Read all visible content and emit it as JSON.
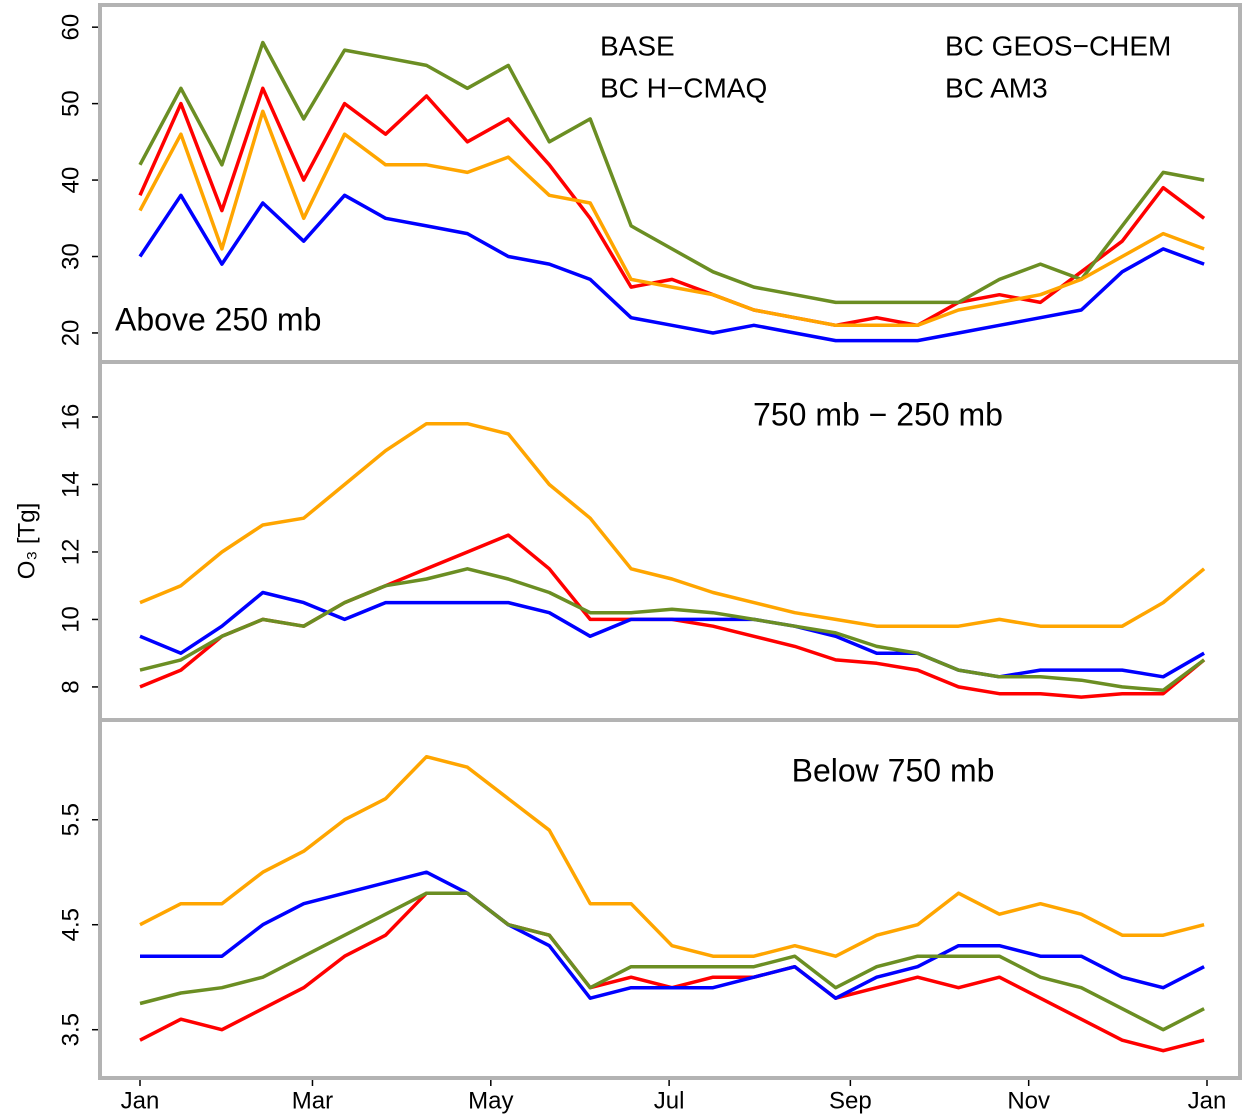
{
  "chart_data": [
    {
      "type": "line",
      "annotation": "Above 250 mb",
      "legend": true,
      "x": [
        1,
        15,
        29,
        43,
        57,
        71,
        85,
        99,
        113,
        127,
        141,
        155,
        169,
        183,
        197,
        211,
        225,
        239,
        253,
        267,
        281,
        295,
        309,
        323,
        337,
        351,
        365
      ],
      "xlim": [
        1,
        366
      ],
      "ylim": [
        16.2,
        62.9
      ],
      "yticks": [
        20,
        30,
        40,
        50,
        60
      ],
      "series": [
        {
          "name": "BASE",
          "color": "#ff0000",
          "values": [
            38,
            50,
            36,
            52,
            40,
            50,
            46,
            51,
            45,
            48,
            42,
            35,
            26,
            27,
            25,
            23,
            22,
            21,
            22,
            21,
            24,
            25,
            24,
            28,
            32,
            39,
            35
          ]
        },
        {
          "name": "BC H−CMAQ",
          "color": "#0000ff",
          "values": [
            30,
            38,
            29,
            37,
            32,
            38,
            35,
            34,
            33,
            30,
            29,
            27,
            22,
            21,
            20,
            21,
            20,
            19,
            19,
            19,
            20,
            21,
            22,
            23,
            28,
            31,
            29
          ]
        },
        {
          "name": "BC GEOS−CHEM",
          "color": "#6b8e23",
          "values": [
            42,
            52,
            42,
            58,
            48,
            57,
            56,
            55,
            52,
            55,
            45,
            48,
            34,
            31,
            28,
            26,
            25,
            24,
            24,
            24,
            24,
            27,
            29,
            27,
            34,
            41,
            40
          ]
        },
        {
          "name": "BC AM3",
          "color": "#ffa500",
          "values": [
            36,
            46,
            31,
            49,
            35,
            46,
            42,
            42,
            41,
            43,
            38,
            37,
            27,
            26,
            25,
            23,
            22,
            21,
            21,
            21,
            23,
            24,
            25,
            27,
            30,
            33,
            31
          ]
        }
      ]
    },
    {
      "type": "line",
      "annotation": "750 mb − 250 mb",
      "ylabel": "O₃ [Tg]",
      "x": [
        1,
        15,
        29,
        43,
        57,
        71,
        85,
        99,
        113,
        127,
        141,
        155,
        169,
        183,
        197,
        211,
        225,
        239,
        253,
        267,
        281,
        295,
        309,
        323,
        337,
        351,
        365
      ],
      "xlim": [
        1,
        366
      ],
      "ylim": [
        7.02,
        17.63
      ],
      "yticks": [
        8,
        10,
        12,
        14,
        16
      ],
      "series": [
        {
          "color": "#ff0000",
          "values": [
            8.0,
            8.5,
            9.5,
            10.0,
            9.8,
            10.5,
            11.0,
            11.5,
            12.0,
            12.5,
            11.5,
            10.0,
            10.0,
            10.0,
            9.8,
            9.5,
            9.2,
            8.8,
            8.7,
            8.5,
            8.0,
            7.8,
            7.8,
            7.7,
            7.8,
            7.8,
            8.8
          ]
        },
        {
          "color": "#0000ff",
          "values": [
            9.5,
            9.0,
            9.8,
            10.8,
            10.5,
            10.0,
            10.5,
            10.5,
            10.5,
            10.5,
            10.2,
            9.5,
            10.0,
            10.0,
            10.0,
            10.0,
            9.8,
            9.5,
            9.0,
            9.0,
            8.5,
            8.3,
            8.5,
            8.5,
            8.5,
            8.3,
            9.0
          ]
        },
        {
          "color": "#6b8e23",
          "values": [
            8.5,
            8.8,
            9.5,
            10.0,
            9.8,
            10.5,
            11.0,
            11.2,
            11.5,
            11.2,
            10.8,
            10.2,
            10.2,
            10.3,
            10.2,
            10.0,
            9.8,
            9.6,
            9.2,
            9.0,
            8.5,
            8.3,
            8.3,
            8.2,
            8.0,
            7.9,
            8.8
          ]
        },
        {
          "color": "#ffa500",
          "values": [
            10.5,
            11.0,
            12.0,
            12.8,
            13.0,
            14.0,
            15.0,
            15.8,
            15.8,
            15.5,
            14.0,
            13.0,
            11.5,
            11.2,
            10.8,
            10.5,
            10.2,
            10.0,
            9.8,
            9.8,
            9.8,
            10.0,
            9.8,
            9.8,
            9.8,
            10.5,
            11.5
          ]
        }
      ]
    },
    {
      "type": "line",
      "annotation": "Below 750 mb",
      "x": [
        1,
        15,
        29,
        43,
        57,
        71,
        85,
        99,
        113,
        127,
        141,
        155,
        169,
        183,
        197,
        211,
        225,
        239,
        253,
        267,
        281,
        295,
        309,
        323,
        337,
        351,
        365
      ],
      "xlim": [
        1,
        366
      ],
      "ylim": [
        3.04,
        6.45
      ],
      "yticks": [
        3.5,
        4.5,
        5.5
      ],
      "xticks": [
        {
          "value": 1,
          "label": "Jan"
        },
        {
          "value": 60,
          "label": "Mar"
        },
        {
          "value": 121,
          "label": "May"
        },
        {
          "value": 182,
          "label": "Jul"
        },
        {
          "value": 244,
          "label": "Sep"
        },
        {
          "value": 305,
          "label": "Nov"
        },
        {
          "value": 366,
          "label": "Jan"
        }
      ],
      "series": [
        {
          "color": "#ff0000",
          "values": [
            3.4,
            3.6,
            3.5,
            3.7,
            3.9,
            4.2,
            4.4,
            4.8,
            4.8,
            4.5,
            4.4,
            3.9,
            4.0,
            3.9,
            4.0,
            4.0,
            4.1,
            3.8,
            3.9,
            4.0,
            3.9,
            4.0,
            3.8,
            3.6,
            3.4,
            3.3,
            3.4
          ]
        },
        {
          "color": "#0000ff",
          "values": [
            4.2,
            4.2,
            4.2,
            4.5,
            4.7,
            4.8,
            4.9,
            5.0,
            4.8,
            4.5,
            4.3,
            3.8,
            3.9,
            3.9,
            3.9,
            4.0,
            4.1,
            3.8,
            4.0,
            4.1,
            4.3,
            4.3,
            4.2,
            4.2,
            4.0,
            3.9,
            4.1
          ]
        },
        {
          "color": "#6b8e23",
          "values": [
            3.75,
            3.85,
            3.9,
            4.0,
            4.2,
            4.4,
            4.6,
            4.8,
            4.8,
            4.5,
            4.4,
            3.9,
            4.1,
            4.1,
            4.1,
            4.1,
            4.2,
            3.9,
            4.1,
            4.2,
            4.2,
            4.2,
            4.0,
            3.9,
            3.7,
            3.5,
            3.7
          ]
        },
        {
          "color": "#ffa500",
          "values": [
            4.5,
            4.7,
            4.7,
            5.0,
            5.2,
            5.5,
            5.7,
            6.1,
            6.0,
            5.7,
            5.4,
            4.7,
            4.7,
            4.3,
            4.2,
            4.2,
            4.3,
            4.2,
            4.4,
            4.5,
            4.8,
            4.6,
            4.7,
            4.6,
            4.4,
            4.4,
            4.5
          ]
        }
      ]
    }
  ]
}
